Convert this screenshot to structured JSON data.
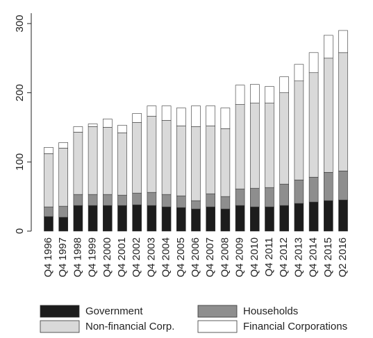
{
  "chart_data": {
    "type": "stacked-bar",
    "categories": [
      "Q4 1996",
      "Q4 1997",
      "Q4 1998",
      "Q4 1999",
      "Q4 2000",
      "Q4 2001",
      "Q4 2002",
      "Q4 2003",
      "Q4 2004",
      "Q4 2005",
      "Q4 2006",
      "Q4 2007",
      "Q4 2008",
      "Q4 2009",
      "Q4 2010",
      "Q4 2011",
      "Q4 2012",
      "Q4 2013",
      "Q4 2014",
      "Q4 2015",
      "Q2 2016"
    ],
    "series": [
      {
        "name": "Government",
        "color": "#1c1c1c",
        "values": [
          21,
          20,
          37,
          37,
          37,
          37,
          38,
          37,
          35,
          34,
          32,
          35,
          32,
          37,
          35,
          35,
          37,
          40,
          42,
          44,
          45
        ]
      },
      {
        "name": "Households",
        "color": "#8e8e8e",
        "values": [
          14,
          16,
          16,
          16,
          16,
          15,
          17,
          19,
          18,
          17,
          12,
          19,
          18,
          24,
          27,
          28,
          31,
          34,
          36,
          41,
          42
        ]
      },
      {
        "name": "Non-financial Corp.",
        "color": "#d9d9d9",
        "values": [
          77,
          84,
          90,
          98,
          97,
          90,
          102,
          110,
          107,
          101,
          107,
          98,
          98,
          122,
          123,
          122,
          132,
          143,
          151,
          165,
          171
        ]
      },
      {
        "name": "Financial Corporations",
        "color": "#ffffff",
        "values": [
          9,
          8,
          8,
          4,
          12,
          11,
          13,
          15,
          21,
          26,
          30,
          29,
          30,
          28,
          27,
          24,
          23,
          24,
          29,
          33,
          32
        ]
      }
    ],
    "ylim": [
      0,
      315
    ],
    "yticks": [
      0,
      100,
      200,
      300
    ]
  }
}
